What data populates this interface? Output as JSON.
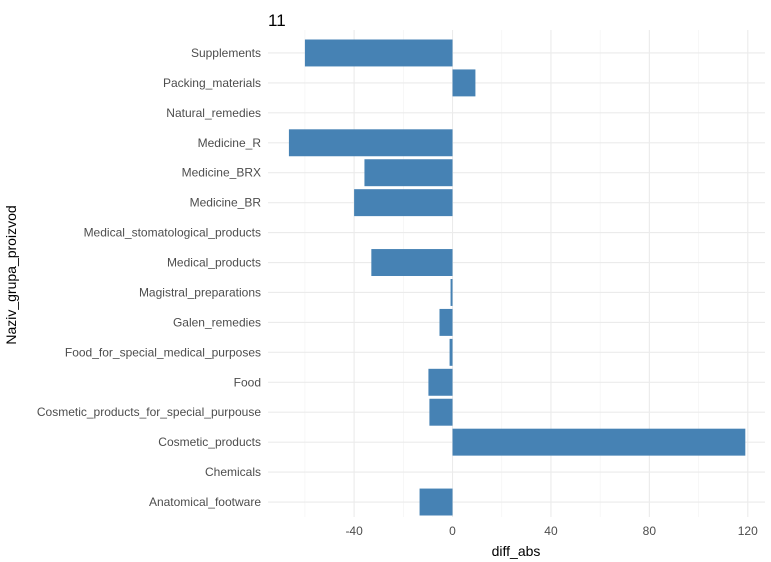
{
  "chart_data": {
    "type": "bar",
    "orientation": "horizontal",
    "title": "11",
    "xlabel": "diff_abs",
    "ylabel": "Naziv_grupa_proizvod",
    "categories": [
      "Supplements",
      "Packing_materials",
      "Natural_remedies",
      "Medicine_R",
      "Medicine_BRX",
      "Medicine_BR",
      "Medical_stomatological_products",
      "Medical_products",
      "Magistral_preparations",
      "Galen_remedies",
      "Food_for_special_medical_purposes",
      "Food",
      "Cosmetic_products_for_special_purpouse",
      "Cosmetic_products",
      "Chemicals",
      "Anatomical_footware"
    ],
    "values": [
      -60,
      9.3,
      0,
      -66.5,
      -35.8,
      -40,
      0,
      -33,
      -0.8,
      -5.3,
      -1.2,
      -9.8,
      -9.4,
      119,
      0,
      -13.4
    ],
    "xticks": [
      -40,
      0,
      40,
      80,
      120
    ],
    "xlim": [
      -75,
      127
    ],
    "grid": true,
    "color": "#4682B4"
  }
}
